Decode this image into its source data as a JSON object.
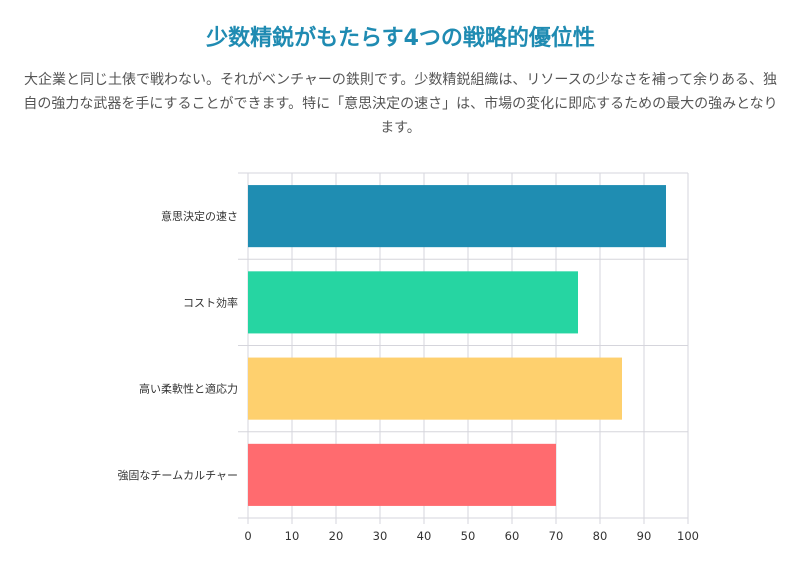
{
  "header": {
    "title": "少数精鋭がもたらす4つの戦略的優位性",
    "description": "大企業と同じ土俵で戦わない。それがベンチャーの鉄則です。少数精鋭組織は、リソースの少なさを補って余りある、独自の強力な武器を手にすることができます。特に「意思決定の速さ」は、市場の変化に即応するための最大の強みとなります。"
  },
  "chart_data": {
    "type": "bar",
    "orientation": "horizontal",
    "title": "",
    "xlabel": "",
    "ylabel": "",
    "categories": [
      "意思決定の速さ",
      "コスト効率",
      "高い柔軟性と適応力",
      "強固なチームカルチャー"
    ],
    "values": [
      95,
      75,
      85,
      70
    ],
    "colors": [
      "#1f8db2",
      "#26d5a2",
      "#fed06e",
      "#ff6b6f"
    ],
    "xlim": [
      0,
      100
    ],
    "xticks": [
      0,
      10,
      20,
      30,
      40,
      50,
      60,
      70,
      80,
      90,
      100
    ],
    "grid": true,
    "legend": "none"
  }
}
